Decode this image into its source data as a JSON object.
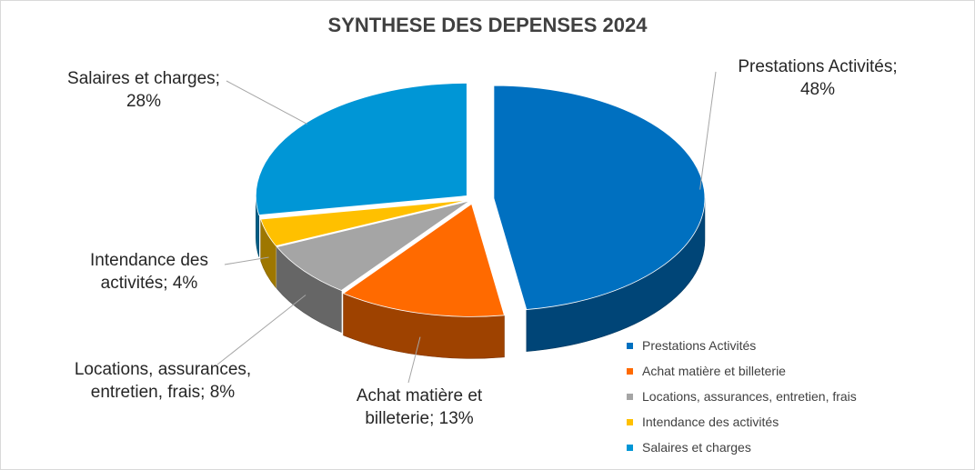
{
  "chart_data": {
    "type": "pie",
    "title": "SYNTHESE DES DEPENSES 2024",
    "categories": [
      "Prestations Activités",
      "Achat matière et billeterie",
      "Locations, assurances, entretien, frais",
      "Intendance des activités",
      "Salaires et charges"
    ],
    "values": [
      48,
      13,
      8,
      4,
      28
    ],
    "colors": [
      "#0070C0",
      "#FF6A00",
      "#A5A5A5",
      "#FFC000",
      "#0096D6"
    ],
    "data_labels": [
      {
        "name": "Prestations Activités;",
        "value": "48%"
      },
      {
        "name": "Achat matière et billeterie;",
        "value": "13%"
      },
      {
        "name": "Locations, assurances, entretien, frais;",
        "value": "8%"
      },
      {
        "name": "Intendance des activités;",
        "value": "4%"
      },
      {
        "name": "Salaires et charges;",
        "value": "28%"
      }
    ],
    "legend": {
      "position": "bottom-right",
      "items": [
        {
          "label": " Prestations Activités",
          "color": "#0070C0"
        },
        {
          "label": "Achat matière et billeterie",
          "color": "#FF6A00"
        },
        {
          "label": "Locations, assurances, entretien, frais",
          "color": "#A5A5A5"
        },
        {
          "label": "Intendance des activités",
          "color": "#FFC000"
        },
        {
          "label": "Salaires et charges",
          "color": "#0096D6"
        }
      ]
    },
    "style": "3d-pie-exploded"
  }
}
